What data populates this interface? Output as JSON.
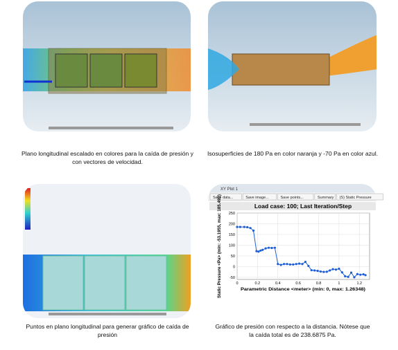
{
  "figures": [
    {
      "caption": "Plano longitudinal escalado en colores para la caída de presión y con vectores de velocidad."
    },
    {
      "caption": "Isosuperficies de 180 Pa en color naranja y -70 Pa en color azul."
    },
    {
      "caption": "Puntos en plano longitudinal para generar gráfico de caída de presión"
    },
    {
      "caption": "Gráfico de presión con respecto a la distancia. Nótese que la caída total es de 238.6875 Pa."
    }
  ],
  "window": {
    "title": "XY Plot 1",
    "buttons": [
      "Save data...",
      "Save image...",
      "Save points...",
      "Summary",
      "(S) Static Pressure"
    ]
  },
  "chart_data": {
    "type": "line",
    "title": "Load case: 100; Last Iteration/Step",
    "y_label": "Static Pressure <Pa> (min: -53.1955, max: 185.492)",
    "x_label": "Parametric Distance <meter> (min: 0, max: 1.26348)",
    "x": [
      0,
      0.03,
      0.07,
      0.1,
      0.13,
      0.16,
      0.19,
      0.21,
      0.23,
      0.25,
      0.28,
      0.31,
      0.34,
      0.37,
      0.4,
      0.43,
      0.46,
      0.49,
      0.52,
      0.55,
      0.58,
      0.61,
      0.64,
      0.67,
      0.7,
      0.73,
      0.76,
      0.79,
      0.82,
      0.85,
      0.88,
      0.91,
      0.94,
      0.97,
      1.0,
      1.03,
      1.06,
      1.09,
      1.12,
      1.15,
      1.18,
      1.21,
      1.24,
      1.26
    ],
    "series": [
      {
        "name": "Static Pressure",
        "color": "#1f5fd6",
        "values": [
          185,
          185,
          185,
          184,
          180,
          168,
          72,
          70,
          75,
          78,
          85,
          88,
          87,
          88,
          12,
          8,
          12,
          12,
          10,
          10,
          12,
          14,
          12,
          22,
          3,
          -17,
          -18,
          -20,
          -23,
          -25,
          -24,
          -18,
          -12,
          -14,
          -10,
          -27,
          -45,
          -48,
          -28,
          -50,
          -35,
          -38,
          -36,
          -40
        ]
      }
    ],
    "xlim": [
      0,
      1.3
    ],
    "xticks": [
      0,
      {
        "value": 0.2,
        "label": "0.2"
      },
      {
        "value": 0.4,
        "label": "0.4"
      },
      {
        "value": 0.6,
        "label": "0.6"
      },
      {
        "value": 0.8,
        "label": "0.8"
      },
      1,
      {
        "value": 1.2,
        "label": "1.2"
      }
    ],
    "ylim": [
      -60,
      250
    ],
    "yticks": [
      -50,
      0,
      50,
      100,
      150,
      200,
      250
    ],
    "grid": true
  }
}
